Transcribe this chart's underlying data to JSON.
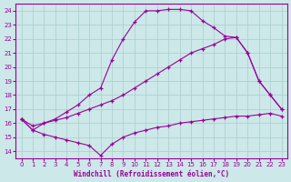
{
  "xlabel": "Windchill (Refroidissement éolien,°C)",
  "bg_color": "#cce8e8",
  "line_color": "#990099",
  "grid_color": "#aacccc",
  "xlim": [
    -0.5,
    23.5
  ],
  "ylim": [
    13.5,
    24.5
  ],
  "xticks": [
    0,
    1,
    2,
    3,
    4,
    5,
    6,
    7,
    8,
    9,
    10,
    11,
    12,
    13,
    14,
    15,
    16,
    17,
    18,
    19,
    20,
    21,
    22,
    23
  ],
  "yticks": [
    14,
    15,
    16,
    17,
    18,
    19,
    20,
    21,
    22,
    23,
    24
  ],
  "s1_x": [
    0,
    1,
    2,
    3,
    4,
    5,
    6,
    7,
    8,
    9,
    10,
    11,
    12,
    13,
    14,
    15,
    16,
    17,
    18,
    19,
    20,
    21,
    22,
    23
  ],
  "s1_y": [
    16.3,
    15.5,
    16.0,
    16.3,
    16.8,
    17.3,
    18.0,
    18.5,
    20.5,
    22.0,
    23.2,
    24.0,
    24.0,
    24.1,
    24.1,
    24.0,
    23.3,
    22.8,
    22.2,
    22.1,
    21.0,
    19.0,
    18.0,
    17.0
  ],
  "s2_x": [
    0,
    1,
    2,
    3,
    4,
    5,
    6,
    7,
    8,
    9,
    10,
    11,
    12,
    13,
    14,
    15,
    16,
    17,
    18,
    19,
    20,
    21,
    22,
    23
  ],
  "s2_y": [
    16.3,
    15.8,
    16.0,
    16.2,
    16.4,
    16.7,
    17.0,
    17.3,
    17.6,
    18.0,
    18.5,
    19.0,
    19.5,
    20.0,
    20.5,
    21.0,
    21.3,
    21.6,
    22.0,
    22.1,
    21.0,
    19.0,
    18.0,
    17.0
  ],
  "s3_x": [
    0,
    1,
    2,
    3,
    4,
    5,
    6,
    7,
    8,
    9,
    10,
    11,
    12,
    13,
    14,
    15,
    16,
    17,
    18,
    19,
    20,
    21,
    22,
    23
  ],
  "s3_y": [
    16.3,
    15.5,
    15.2,
    15.0,
    14.8,
    14.6,
    14.4,
    13.7,
    14.5,
    15.0,
    15.3,
    15.5,
    15.7,
    15.8,
    16.0,
    16.1,
    16.2,
    16.3,
    16.4,
    16.5,
    16.5,
    16.6,
    16.7,
    16.5
  ]
}
